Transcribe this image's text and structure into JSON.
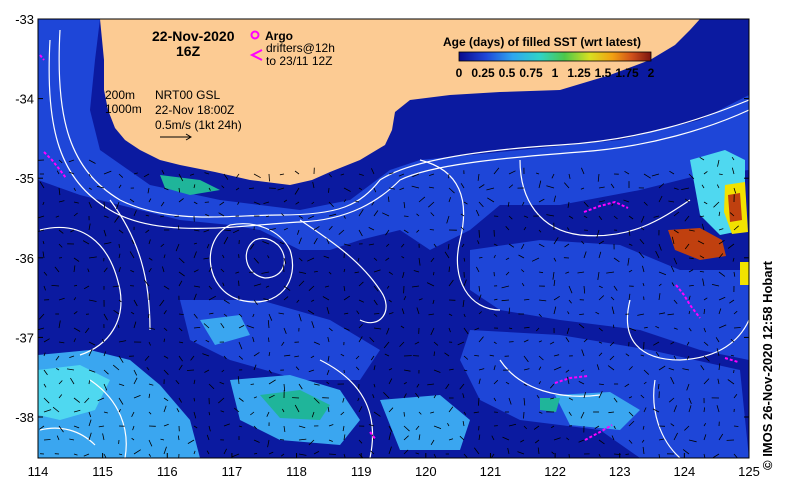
{
  "map": {
    "date_line1": "22-Nov-2020",
    "date_line2": "16Z",
    "argo_label": "Argo",
    "drifter_label1": "drifters@12h",
    "drifter_label2": "to 23/11 12Z",
    "depth_label1": "200m",
    "depth_label2": "1000m",
    "product_label1": "NRT00 GSL",
    "product_label2": "22-Nov 18:00Z",
    "vector_scale_label": "0.5m/s (1kt 24h)",
    "credit": "© IMOS 26-Nov-2020 12:58 Hobart",
    "lon_ticks": [
      "114",
      "115",
      "116",
      "117",
      "118",
      "119",
      "120",
      "121",
      "122",
      "123",
      "124",
      "125"
    ],
    "lat_ticks": [
      "-33",
      "-34",
      "-35",
      "-36",
      "-37",
      "-38"
    ],
    "colors": {
      "land": "#fccb93",
      "deep_blue": "#0b1aa0",
      "mid_blue": "#1e46d8",
      "light_blue": "#3aa6f0",
      "cyan": "#4fd8f0",
      "teal": "#1fb59a",
      "argo": "#ff00ff",
      "drifter": "#ff00ff",
      "stale_orange": "#c0400f",
      "stale_yellow": "#f2e200",
      "contour": "#ffffff"
    }
  },
  "colorbar": {
    "title": "Age (days) of filled SST (wrt latest)",
    "tick_labels": [
      "0",
      "0.25",
      "0.5",
      "0.75",
      "1",
      "1.25",
      "1.5",
      "1.75",
      "2"
    ]
  }
}
